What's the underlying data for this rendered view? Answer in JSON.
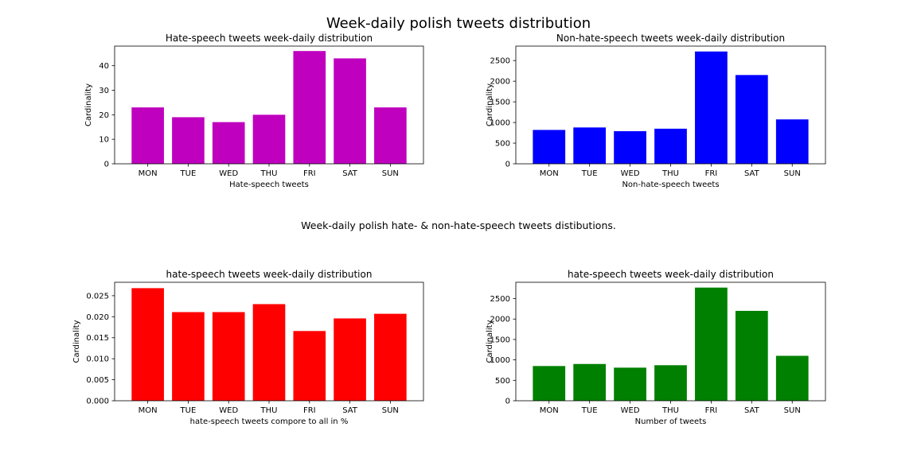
{
  "figure": {
    "suptitle": "Week-daily polish tweets distribution",
    "midtitle": "Week-daily polish hate- & non-hate-speech tweets distibutions."
  },
  "chart_data": [
    {
      "type": "bar",
      "title": "Hate-speech tweets week-daily distribution",
      "xlabel": "Hate-speech tweets",
      "ylabel": "Cardinality",
      "categories": [
        "MON",
        "TUE",
        "WED",
        "THU",
        "FRI",
        "SAT",
        "SUN"
      ],
      "values": [
        23,
        19,
        17,
        20,
        46,
        43,
        23
      ],
      "color": "#bf00bf",
      "ylim": [
        0,
        48
      ],
      "yticks": [
        0,
        10,
        20,
        30,
        40
      ],
      "ytick_labels": [
        "0",
        "10",
        "20",
        "30",
        "40"
      ],
      "grid": false
    },
    {
      "type": "bar",
      "title": "Non-hate-speech tweets week-daily distribution",
      "xlabel": "Non-hate-speech tweets",
      "ylabel": "Cardinality",
      "categories": [
        "MON",
        "TUE",
        "WED",
        "THU",
        "FRI",
        "SAT",
        "SUN"
      ],
      "values": [
        820,
        880,
        790,
        850,
        2720,
        2150,
        1075
      ],
      "color": "#0000ff",
      "ylim": [
        0,
        2850
      ],
      "yticks": [
        0,
        500,
        1000,
        1500,
        2000,
        2500
      ],
      "ytick_labels": [
        "0",
        "500",
        "1000",
        "1500",
        "2000",
        "2500"
      ],
      "grid": false
    },
    {
      "type": "bar",
      "title": "hate-speech tweets week-daily distribution",
      "xlabel": "hate-speech tweets compore to all in %",
      "ylabel": "Cardinality",
      "categories": [
        "MON",
        "TUE",
        "WED",
        "THU",
        "FRI",
        "SAT",
        "SUN"
      ],
      "values": [
        0.0268,
        0.0211,
        0.0211,
        0.023,
        0.0166,
        0.0196,
        0.0207
      ],
      "color": "#ff0000",
      "ylim": [
        0,
        0.0282
      ],
      "yticks": [
        0,
        0.005,
        0.01,
        0.015,
        0.02,
        0.025
      ],
      "ytick_labels": [
        "0.000",
        "0.005",
        "0.010",
        "0.015",
        "0.020",
        "0.025"
      ],
      "grid": false
    },
    {
      "type": "bar",
      "title": "hate-speech tweets week-daily distribution",
      "xlabel": "Number of tweets",
      "ylabel": "Cardinality",
      "categories": [
        "MON",
        "TUE",
        "WED",
        "THU",
        "FRI",
        "SAT",
        "SUN"
      ],
      "values": [
        850,
        900,
        810,
        870,
        2770,
        2200,
        1100
      ],
      "color": "#008000",
      "ylim": [
        0,
        2900
      ],
      "yticks": [
        0,
        500,
        1000,
        1500,
        2000,
        2500
      ],
      "ytick_labels": [
        "0",
        "500",
        "1000",
        "1500",
        "2000",
        "2500"
      ],
      "grid": false
    }
  ]
}
